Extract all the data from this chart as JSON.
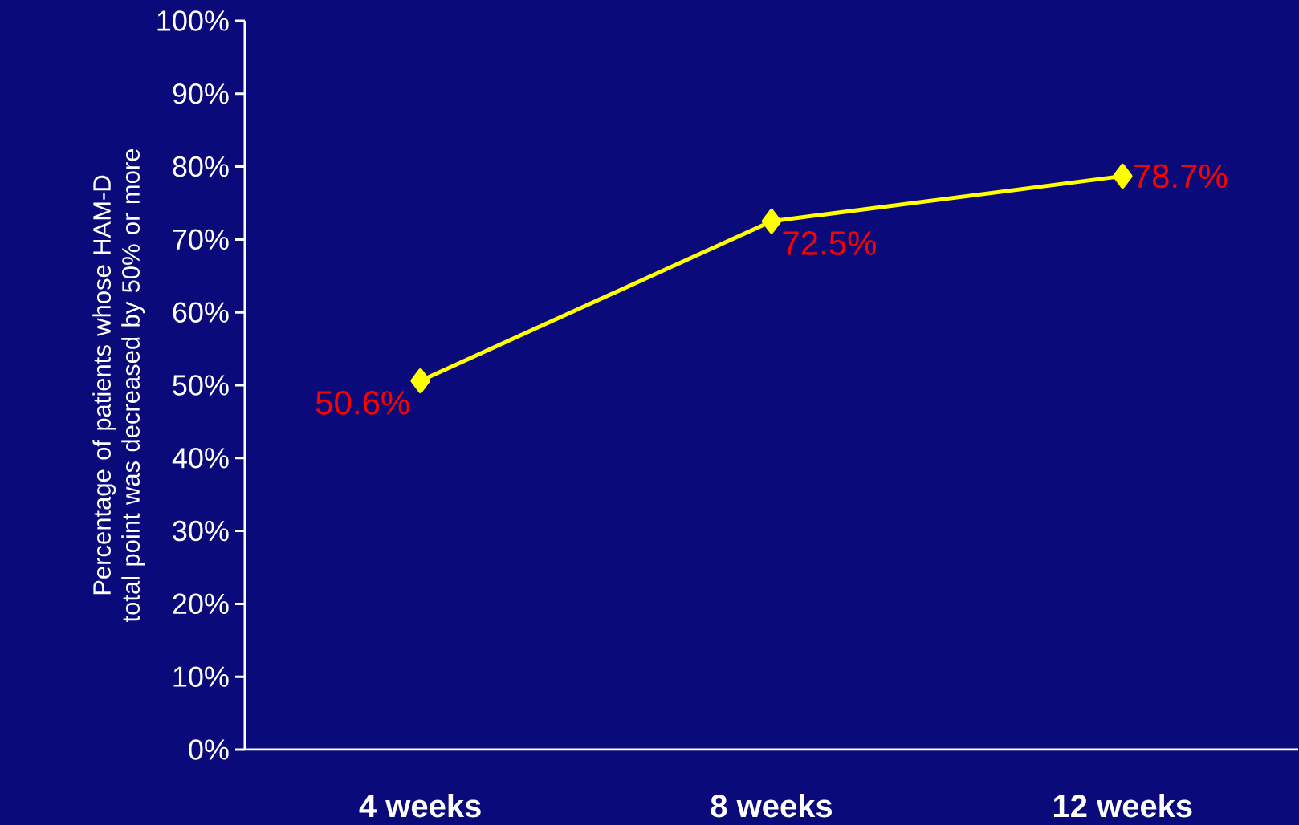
{
  "chart_data": {
    "type": "line",
    "ylabel": "Percentage of patients whose HAM-D total point was decreased by 50% or more",
    "categories": [
      "4 weeks",
      "8 weeks",
      "12 weeks"
    ],
    "series": [
      {
        "color": "#ffff00",
        "values": [
          50.6,
          72.5,
          78.7
        ],
        "value_labels": [
          "50.6%",
          "72.5%",
          "78.7%"
        ]
      }
    ],
    "ylim": [
      0,
      100
    ],
    "yticks": [
      {
        "value": 0,
        "label": "0%"
      },
      {
        "value": 10,
        "label": "10%"
      },
      {
        "value": 20,
        "label": "20%"
      },
      {
        "value": 30,
        "label": "30%"
      },
      {
        "value": 40,
        "label": "40%"
      },
      {
        "value": 50,
        "label": "50%"
      },
      {
        "value": 60,
        "label": "60%"
      },
      {
        "value": 70,
        "label": "70%"
      },
      {
        "value": 80,
        "label": "80%"
      },
      {
        "value": 90,
        "label": "90%"
      },
      {
        "value": 100,
        "label": "100%"
      }
    ],
    "marker": "diamond",
    "line_style": "solid"
  }
}
